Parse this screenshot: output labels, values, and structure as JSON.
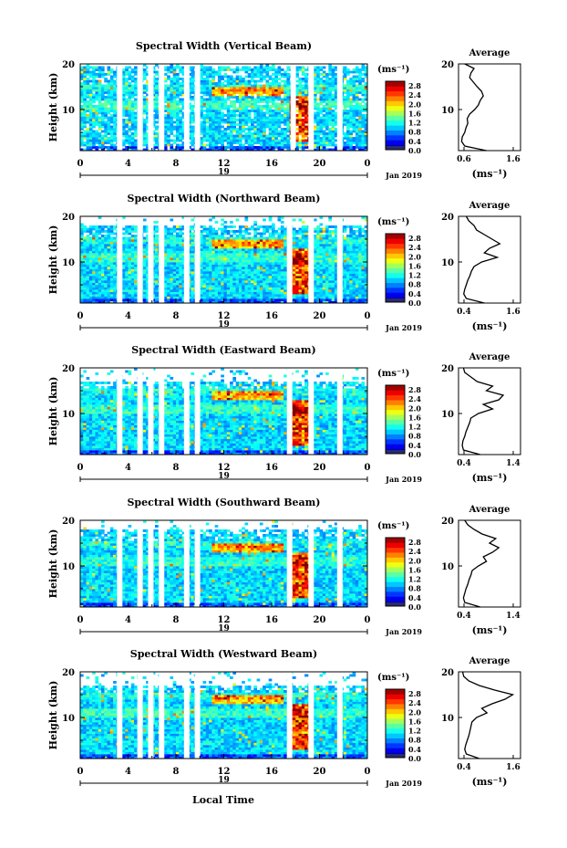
{
  "figure": {
    "x_axis_label": "Local Time",
    "date_label": "Jan 2019",
    "day_label": "19",
    "colorbar_unit": "(ms⁻¹)",
    "avg_title": "Average",
    "avg_unit": "(ms⁻¹)",
    "ylabel": "Height (km)"
  },
  "chart_data": [
    {
      "type": "heatmap",
      "title": "Spectral Width (Vertical Beam)",
      "xlabel": "Local Time",
      "ylabel": "Height (km)",
      "x_ticks": [
        "0",
        "4",
        "8",
        "12",
        "16",
        "20",
        "0"
      ],
      "y_ticks": [
        "10",
        "20"
      ],
      "xlim": [
        0,
        24
      ],
      "ylim": [
        1,
        20
      ],
      "colorbar": {
        "ticks": [
          "2.8",
          "2.4",
          "2.0",
          "1.6",
          "1.2",
          "0.8",
          "0.4",
          "0.0"
        ],
        "range": [
          0,
          2.8
        ],
        "unit": "ms-1"
      },
      "data_gaps_local_time": [
        3.3,
        5.0,
        5.9,
        6.8,
        8.9,
        9.8,
        17.8,
        19.3,
        21.7
      ],
      "average_profile": {
        "xlim": [
          0.6,
          1.6
        ],
        "x_ticks": [
          "0.6",
          "1.6"
        ],
        "height_km": [
          1,
          2,
          3,
          4,
          5,
          6,
          7,
          8,
          9,
          10,
          11,
          12,
          13,
          14,
          15,
          16,
          17,
          18,
          19,
          20
        ],
        "value": [
          1.05,
          0.7,
          0.65,
          0.66,
          0.7,
          0.72,
          0.75,
          0.74,
          0.78,
          0.86,
          0.92,
          0.95,
          1.0,
          0.97,
          0.9,
          0.84,
          0.78,
          0.8,
          0.85,
          0.7
        ]
      }
    },
    {
      "type": "heatmap",
      "title": "Spectral Width (Northward Beam)",
      "xlabel": "Local Time",
      "ylabel": "Height (km)",
      "x_ticks": [
        "0",
        "4",
        "8",
        "12",
        "16",
        "20",
        "0"
      ],
      "y_ticks": [
        "10",
        "20"
      ],
      "xlim": [
        0,
        24
      ],
      "ylim": [
        1,
        20
      ],
      "colorbar": {
        "ticks": [
          "2.8",
          "2.4",
          "2.0",
          "1.6",
          "1.2",
          "0.8",
          "0.4",
          "0.0"
        ],
        "range": [
          0,
          2.8
        ],
        "unit": "ms-1"
      },
      "data_gaps_local_time": [
        3.3,
        5.0,
        5.9,
        6.8,
        8.9,
        9.8,
        17.5,
        19.3,
        21.7
      ],
      "average_profile": {
        "xlim": [
          0.4,
          1.6
        ],
        "x_ticks": [
          "0.4",
          "1.6"
        ],
        "height_km": [
          1,
          2,
          3,
          4,
          5,
          6,
          7,
          8,
          9,
          10,
          11,
          12,
          13,
          14,
          15,
          16,
          17,
          18,
          19,
          20
        ],
        "value": [
          0.9,
          0.55,
          0.5,
          0.52,
          0.55,
          0.58,
          0.62,
          0.65,
          0.7,
          0.85,
          1.15,
          0.9,
          1.0,
          1.2,
          1.05,
          0.9,
          0.75,
          0.7,
          0.6,
          0.55
        ]
      }
    },
    {
      "type": "heatmap",
      "title": "Spectral Width (Eastward Beam)",
      "xlabel": "Local Time",
      "ylabel": "Height (km)",
      "x_ticks": [
        "0",
        "4",
        "8",
        "12",
        "16",
        "20",
        "0"
      ],
      "y_ticks": [
        "10",
        "20"
      ],
      "xlim": [
        0,
        24
      ],
      "ylim": [
        1,
        20
      ],
      "colorbar": {
        "ticks": [
          "2.8",
          "2.4",
          "2.0",
          "1.6",
          "1.2",
          "0.8",
          "0.4",
          "0.0"
        ],
        "range": [
          0,
          2.8
        ],
        "unit": "ms-1"
      },
      "data_gaps_local_time": [
        3.3,
        5.0,
        5.9,
        6.8,
        8.9,
        9.8,
        17.5,
        19.3,
        21.7
      ],
      "average_profile": {
        "xlim": [
          0.4,
          1.4
        ],
        "x_ticks": [
          "0.4",
          "1.4"
        ],
        "height_km": [
          1,
          2,
          3,
          4,
          5,
          6,
          7,
          8,
          9,
          10,
          11,
          12,
          13,
          14,
          15,
          16,
          17,
          18,
          19,
          20
        ],
        "value": [
          0.75,
          0.48,
          0.46,
          0.47,
          0.5,
          0.52,
          0.55,
          0.58,
          0.6,
          0.72,
          0.95,
          0.8,
          1.05,
          1.12,
          0.85,
          0.95,
          0.7,
          0.6,
          0.5,
          0.48
        ]
      }
    },
    {
      "type": "heatmap",
      "title": "Spectral Width (Southward Beam)",
      "xlabel": "Local Time",
      "ylabel": "Height (km)",
      "x_ticks": [
        "0",
        "4",
        "8",
        "12",
        "16",
        "20",
        "0"
      ],
      "y_ticks": [
        "10",
        "20"
      ],
      "xlim": [
        0,
        24
      ],
      "ylim": [
        1,
        20
      ],
      "colorbar": {
        "ticks": [
          "2.8",
          "2.4",
          "2.0",
          "1.6",
          "1.2",
          "0.8",
          "0.4",
          "0.0"
        ],
        "range": [
          0,
          2.8
        ],
        "unit": "ms-1"
      },
      "data_gaps_local_time": [
        3.3,
        5.0,
        5.9,
        6.8,
        8.9,
        9.8,
        17.5,
        19.3,
        21.7
      ],
      "average_profile": {
        "xlim": [
          0.4,
          1.4
        ],
        "x_ticks": [
          "0.4",
          "1.4"
        ],
        "height_km": [
          1,
          2,
          3,
          4,
          5,
          6,
          7,
          8,
          9,
          10,
          11,
          12,
          13,
          14,
          15,
          16,
          17,
          18,
          19,
          20
        ],
        "value": [
          0.75,
          0.5,
          0.48,
          0.5,
          0.52,
          0.55,
          0.57,
          0.6,
          0.62,
          0.72,
          0.85,
          0.8,
          0.95,
          1.05,
          0.9,
          1.0,
          0.78,
          0.65,
          0.55,
          0.5
        ]
      }
    },
    {
      "type": "heatmap",
      "title": "Spectral Width (Westward Beam)",
      "xlabel": "Local Time",
      "ylabel": "Height (km)",
      "x_ticks": [
        "0",
        "4",
        "8",
        "12",
        "16",
        "20",
        "0"
      ],
      "y_ticks": [
        "10",
        "20"
      ],
      "xlim": [
        0,
        24
      ],
      "ylim": [
        1,
        20
      ],
      "colorbar": {
        "ticks": [
          "2.8",
          "2.4",
          "2.0",
          "1.6",
          "1.2",
          "0.8",
          "0.4",
          "0.0"
        ],
        "range": [
          0,
          2.8
        ],
        "unit": "ms-1"
      },
      "data_gaps_local_time": [
        3.3,
        5.0,
        5.9,
        6.8,
        8.9,
        9.8,
        17.5,
        19.3,
        21.7
      ],
      "average_profile": {
        "xlim": [
          0.4,
          1.6
        ],
        "x_ticks": [
          "0.4",
          "1.6"
        ],
        "height_km": [
          1,
          2,
          3,
          4,
          5,
          6,
          7,
          8,
          9,
          10,
          11,
          12,
          13,
          14,
          15,
          16,
          17,
          18,
          19,
          20
        ],
        "value": [
          0.8,
          0.55,
          0.52,
          0.54,
          0.57,
          0.6,
          0.62,
          0.64,
          0.66,
          0.75,
          0.95,
          0.85,
          1.05,
          1.3,
          1.45,
          1.1,
          0.8,
          0.6,
          0.5,
          0.48
        ]
      }
    }
  ]
}
